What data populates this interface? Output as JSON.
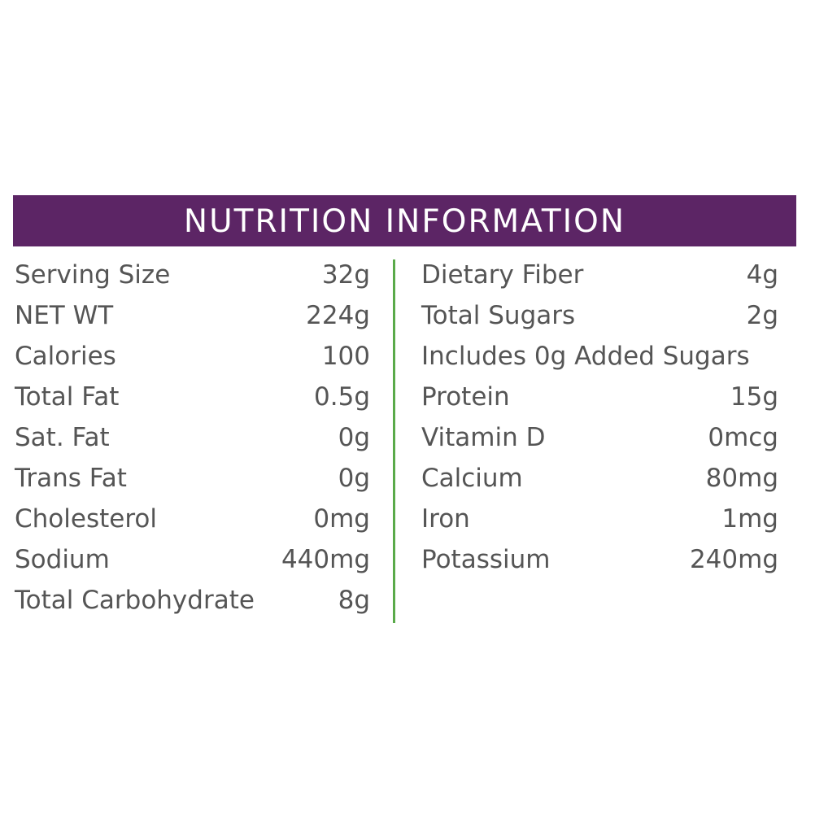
{
  "header": {
    "title": "NUTRITION INFORMATION"
  },
  "colors": {
    "header_background": "#5c2565",
    "header_text": "#ffffff",
    "divider": "#5aaa4a",
    "body_text": "#555555"
  },
  "left": [
    {
      "label": "Serving Size",
      "value": "32g"
    },
    {
      "label": "NET WT",
      "value": "224g"
    },
    {
      "label": "Calories",
      "value": "100"
    },
    {
      "label": "Total Fat",
      "value": "0.5g"
    },
    {
      "label": "Sat. Fat",
      "value": "0g"
    },
    {
      "label": "Trans Fat",
      "value": "0g"
    },
    {
      "label": "Cholesterol",
      "value": "0mg"
    },
    {
      "label": "Sodium",
      "value": "440mg"
    },
    {
      "label": "Total Carbohydrate",
      "value": "8g"
    }
  ],
  "right": [
    {
      "label": "Dietary Fiber",
      "value": "4g"
    },
    {
      "label": "Total Sugars",
      "value": "2g"
    },
    {
      "label": "Includes 0g Added Sugars",
      "value": ""
    },
    {
      "label": "Protein",
      "value": "15g"
    },
    {
      "label": "Vitamin D",
      "value": "0mcg"
    },
    {
      "label": "Calcium",
      "value": "80mg"
    },
    {
      "label": "Iron",
      "value": "1mg"
    },
    {
      "label": "Potassium",
      "value": "240mg"
    }
  ]
}
